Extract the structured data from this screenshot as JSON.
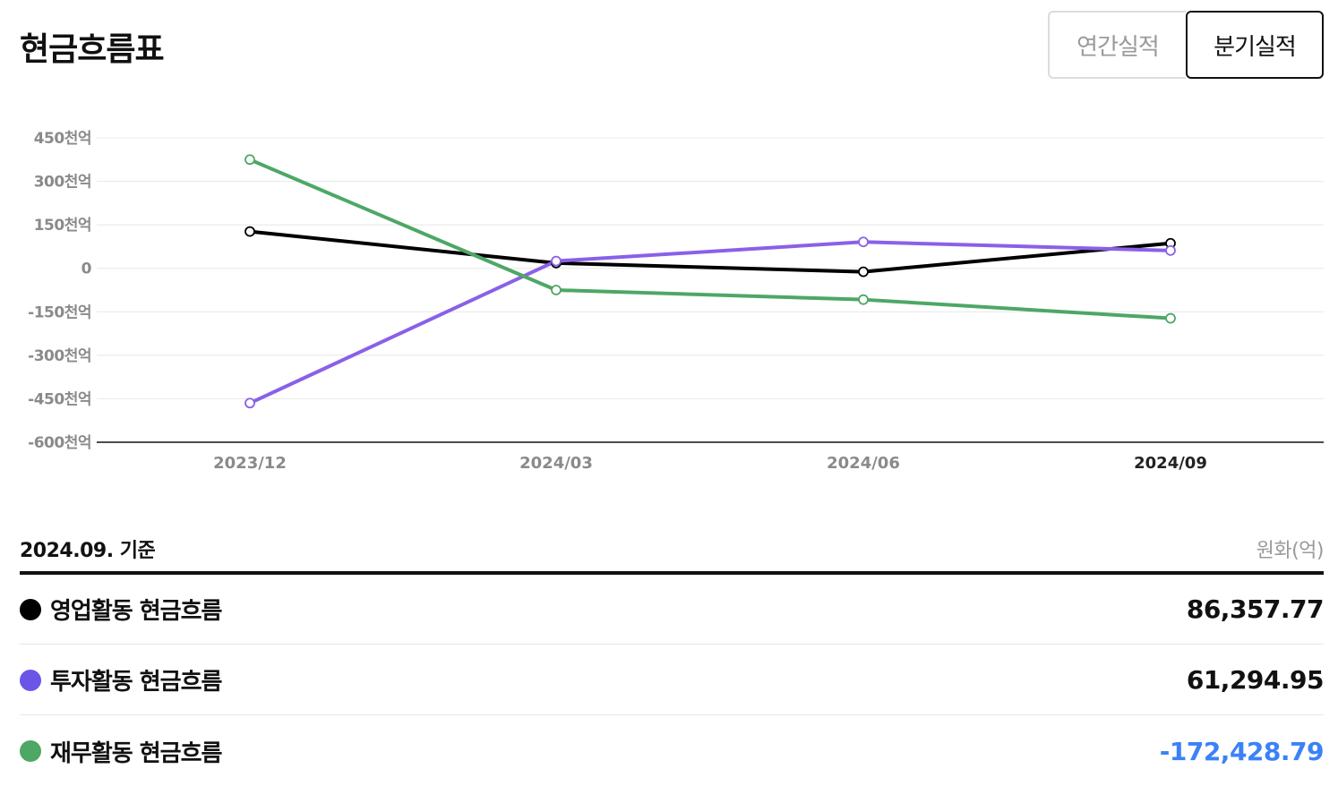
{
  "header": {
    "title": "현금흐름표",
    "tabs": [
      {
        "label": "연간실적",
        "active": false
      },
      {
        "label": "분기실적",
        "active": true
      }
    ]
  },
  "chart_data": {
    "type": "line",
    "categories": [
      "2023/12",
      "2024/03",
      "2024/06",
      "2024/09"
    ],
    "highlight_category": "2024/09",
    "y_ticks": [
      "450천억",
      "300천억",
      "150천억",
      "0",
      "-150천억",
      "-300천억",
      "-450천억",
      "-600천억"
    ],
    "y_tick_values": [
      450000,
      300000,
      150000,
      0,
      -150000,
      -300000,
      -450000,
      -600000
    ],
    "ylim": [
      -600000,
      450000
    ],
    "grid": true,
    "series": [
      {
        "name": "영업활동 현금흐름",
        "color": "#000000",
        "values": [
          127000,
          18000,
          -12000,
          86357.77
        ]
      },
      {
        "name": "투자활동 현금흐름",
        "color": "#8a60e8",
        "values": [
          -465000,
          25000,
          91000,
          61294.95
        ]
      },
      {
        "name": "재무활동 현금흐름",
        "color": "#4ea765",
        "values": [
          375000,
          -75000,
          -108000,
          -172428.79
        ]
      }
    ]
  },
  "table": {
    "basis": "2024.09. 기준",
    "unit": "원화(억)",
    "rows": [
      {
        "label": "영업활동 현금흐름",
        "value": "86,357.77",
        "dot_color": "#000000",
        "value_color": "#111111"
      },
      {
        "label": "투자활동 현금흐름",
        "value": "61,294.95",
        "dot_color": "#6a55e6",
        "value_color": "#111111"
      },
      {
        "label": "재무활동 현금흐름",
        "value": "-172,428.79",
        "dot_color": "#4ea765",
        "value_color": "#3b82f6"
      }
    ]
  }
}
